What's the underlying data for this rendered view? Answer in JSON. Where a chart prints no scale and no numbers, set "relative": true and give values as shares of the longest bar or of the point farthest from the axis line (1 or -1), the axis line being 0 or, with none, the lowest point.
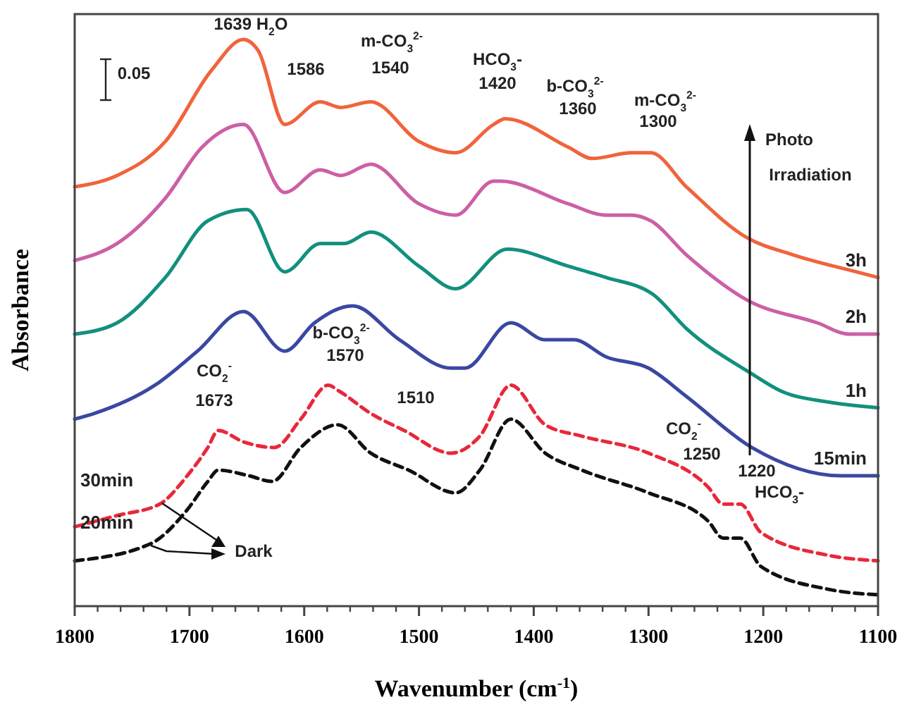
{
  "chart_data": {
    "type": "line",
    "relative": true,
    "xlabel": "Wavenumber (cm$^{-1}$)",
    "ylabel": "Absorbance",
    "xlim": [
      1800,
      1100
    ],
    "xticks": [
      1800,
      1700,
      1600,
      1500,
      1400,
      1300,
      1200,
      1100
    ],
    "tick_labels": "x",
    "grid": false,
    "legend": "bottom left",
    "series": [
      {
        "name": "3h",
        "color": "#f0643c",
        "line_style": "solid",
        "x": [
          1800,
          1763,
          1721,
          1681,
          1653,
          1640,
          1617,
          1586,
          1568,
          1542,
          1500,
          1468,
          1435,
          1425,
          1370,
          1349,
          1315,
          1298,
          1267,
          1214,
          1174,
          1119,
          1100
        ],
        "values": [
          0.74,
          0.76,
          0.82,
          0.945,
          1.0,
          0.98,
          0.85,
          0.89,
          0.88,
          0.89,
          0.82,
          0.8,
          0.85,
          0.86,
          0.81,
          0.79,
          0.8,
          0.8,
          0.74,
          0.65,
          0.62,
          0.59,
          0.58
        ]
      },
      {
        "name": "2h",
        "color": "#cc5fa6",
        "line_style": "solid",
        "x": [
          1800,
          1763,
          1721,
          1689,
          1653,
          1617,
          1586,
          1568,
          1542,
          1500,
          1468,
          1435,
          1429,
          1370,
          1337,
          1315,
          1298,
          1267,
          1214,
          1153,
          1125,
          1100
        ],
        "values": [
          0.61,
          0.64,
          0.72,
          0.81,
          0.85,
          0.73,
          0.77,
          0.76,
          0.78,
          0.71,
          0.69,
          0.75,
          0.75,
          0.71,
          0.69,
          0.69,
          0.68,
          0.62,
          0.54,
          0.5,
          0.48,
          0.48
        ]
      },
      {
        "name": "1h",
        "color": "#12907e",
        "line_style": "solid",
        "x": [
          1800,
          1763,
          1721,
          1684,
          1650,
          1617,
          1586,
          1565,
          1542,
          1500,
          1468,
          1423,
          1370,
          1337,
          1296,
          1267,
          1210,
          1185,
          1143,
          1100
        ],
        "values": [
          0.48,
          0.5,
          0.58,
          0.68,
          0.7,
          0.59,
          0.64,
          0.64,
          0.66,
          0.6,
          0.56,
          0.63,
          0.6,
          0.58,
          0.55,
          0.49,
          0.41,
          0.38,
          0.36,
          0.35
        ]
      },
      {
        "name": "15min",
        "color": "#3a48a2",
        "line_style": "solid",
        "x": [
          1800,
          1783,
          1730,
          1693,
          1653,
          1617,
          1591,
          1558,
          1517,
          1472,
          1460,
          1420,
          1390,
          1365,
          1337,
          1300,
          1267,
          1210,
          1132,
          1120,
          1100
        ],
        "values": [
          0.33,
          0.34,
          0.39,
          0.45,
          0.52,
          0.45,
          0.5,
          0.53,
          0.47,
          0.42,
          0.42,
          0.5,
          0.47,
          0.47,
          0.44,
          0.42,
          0.37,
          0.28,
          0.23,
          0.23,
          0.23
        ]
      },
      {
        "name": "30min",
        "color": "#e8283a",
        "line_style": "dashed",
        "x": [
          1800,
          1763,
          1726,
          1702,
          1684,
          1675,
          1653,
          1626,
          1603,
          1579,
          1570,
          1542,
          1513,
          1472,
          1447,
          1420,
          1390,
          1358,
          1300,
          1248,
          1235,
          1220,
          1202,
          1144,
          1100
        ],
        "values": [
          0.14,
          0.16,
          0.18,
          0.23,
          0.28,
          0.31,
          0.29,
          0.28,
          0.33,
          0.39,
          0.38,
          0.34,
          0.31,
          0.27,
          0.3,
          0.39,
          0.32,
          0.3,
          0.27,
          0.21,
          0.18,
          0.18,
          0.13,
          0.09,
          0.08
        ]
      },
      {
        "name": "20min",
        "color": "#111111",
        "line_style": "dashed",
        "x": [
          1800,
          1734,
          1702,
          1684,
          1675,
          1648,
          1628,
          1603,
          1571,
          1542,
          1509,
          1468,
          1447,
          1420,
          1390,
          1358,
          1300,
          1248,
          1235,
          1220,
          1202,
          1144,
          1100
        ],
        "values": [
          0.08,
          0.11,
          0.17,
          0.22,
          0.24,
          0.23,
          0.22,
          0.28,
          0.32,
          0.27,
          0.24,
          0.2,
          0.24,
          0.33,
          0.27,
          0.24,
          0.2,
          0.15,
          0.12,
          0.12,
          0.07,
          0.03,
          0.02
        ]
      }
    ],
    "annotations": [
      "1639 H$_{2}$O",
      "1586",
      "m-CO$_{3}$$^{2-}$",
      "1540",
      "HCO$_{3}$-",
      "1420",
      "b-CO$_{3}$$^{2-}$",
      "1360",
      "m-CO$_{3}$$^{2-}$",
      "1300",
      "b-CO$_{3}$$^{2-}$",
      "1570",
      "CO$_{2}$$^{-}$",
      "1673",
      "1510",
      "CO$_{2}$$^{-}$",
      "1250",
      "1220",
      "HCO$_{3}$-",
      "0.05",
      "Photo",
      "Irradiation",
      "Dark"
    ]
  }
}
